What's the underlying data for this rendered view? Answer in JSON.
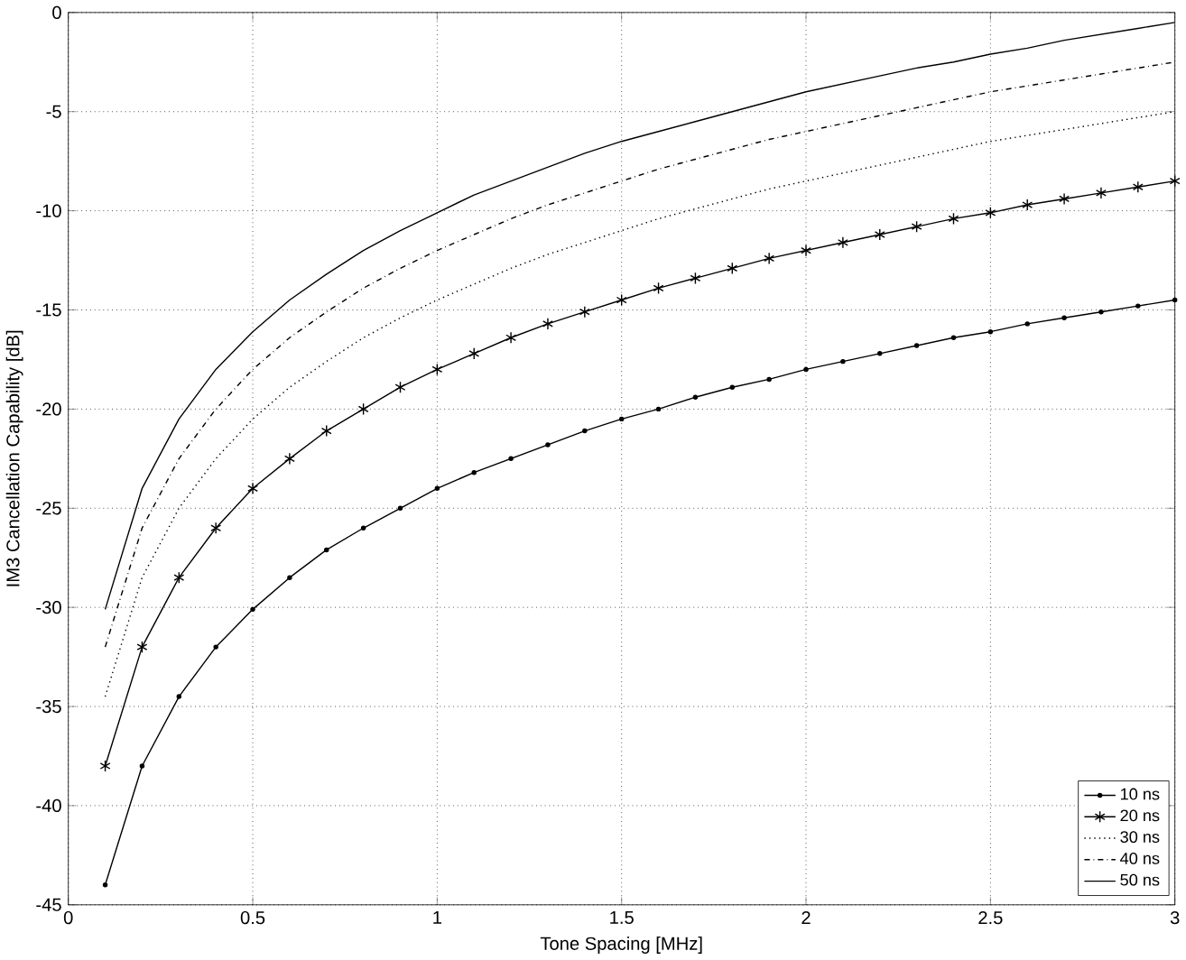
{
  "chart_data": {
    "type": "line",
    "xlabel": "Tone Spacing [MHz]",
    "ylabel": "IM3 Cancellation Capability [dB]",
    "x": [
      0.1,
      0.2,
      0.3,
      0.4,
      0.5,
      0.6,
      0.7,
      0.8,
      0.9,
      1.0,
      1.1,
      1.2,
      1.3,
      1.4,
      1.5,
      1.6,
      1.7,
      1.8,
      1.9,
      2.0,
      2.1,
      2.2,
      2.3,
      2.4,
      2.5,
      2.6,
      2.7,
      2.8,
      2.9,
      3.0
    ],
    "xlim": [
      0,
      3
    ],
    "ylim": [
      -45,
      0
    ],
    "xticks": [
      0,
      0.5,
      1,
      1.5,
      2,
      2.5,
      3
    ],
    "yticks": [
      -45,
      -40,
      -35,
      -30,
      -25,
      -20,
      -15,
      -10,
      -5,
      0
    ],
    "grid": true,
    "legend": "bottom right",
    "series": [
      {
        "name": "10 ns",
        "color": "#000000",
        "marker": "circle",
        "line_style": "solid",
        "values": [
          -44.0,
          -38.0,
          -34.5,
          -32.0,
          -30.1,
          -28.5,
          -27.1,
          -26.0,
          -25.0,
          -24.0,
          -23.2,
          -22.5,
          -21.8,
          -21.1,
          -20.5,
          -20.0,
          -19.4,
          -18.9,
          -18.5,
          -18.0,
          -17.6,
          -17.2,
          -16.8,
          -16.4,
          -16.1,
          -15.7,
          -15.4,
          -15.1,
          -14.8,
          -14.5
        ]
      },
      {
        "name": "20 ns",
        "color": "#000000",
        "marker": "cross",
        "line_style": "solid",
        "values": [
          -38.0,
          -32.0,
          -28.5,
          -26.0,
          -24.0,
          -22.5,
          -21.1,
          -20.0,
          -18.9,
          -18.0,
          -17.2,
          -16.4,
          -15.7,
          -15.1,
          -14.5,
          -13.9,
          -13.4,
          -12.9,
          -12.4,
          -12.0,
          -11.6,
          -11.2,
          -10.8,
          -10.4,
          -10.1,
          -9.7,
          -9.4,
          -9.1,
          -8.8,
          -8.5
        ]
      },
      {
        "name": "30 ns",
        "color": "#000000",
        "marker": "none",
        "line_style": "dotted",
        "values": [
          -34.5,
          -28.5,
          -25.0,
          -22.5,
          -20.5,
          -18.9,
          -17.6,
          -16.4,
          -15.4,
          -14.5,
          -13.7,
          -12.9,
          -12.2,
          -11.6,
          -11.0,
          -10.4,
          -9.9,
          -9.4,
          -8.9,
          -8.5,
          -8.1,
          -7.7,
          -7.3,
          -6.9,
          -6.5,
          -6.2,
          -5.9,
          -5.6,
          -5.3,
          -5.0
        ]
      },
      {
        "name": "40 ns",
        "color": "#000000",
        "marker": "none",
        "line_style": "dashed",
        "values": [
          -32.0,
          -26.0,
          -22.5,
          -20.0,
          -18.0,
          -16.4,
          -15.1,
          -13.9,
          -12.9,
          -12.0,
          -11.2,
          -10.4,
          -9.7,
          -9.1,
          -8.5,
          -7.9,
          -7.4,
          -6.9,
          -6.4,
          -6.0,
          -5.6,
          -5.2,
          -4.8,
          -4.4,
          -4.0,
          -3.7,
          -3.4,
          -3.1,
          -2.8,
          -2.5
        ]
      },
      {
        "name": "50 ns",
        "color": "#000000",
        "marker": "none",
        "line_style": "solid",
        "values": [
          -30.1,
          -24.0,
          -20.5,
          -18.0,
          -16.1,
          -14.5,
          -13.2,
          -12.0,
          -11.0,
          -10.1,
          -9.2,
          -8.5,
          -7.8,
          -7.1,
          -6.5,
          -6.0,
          -5.5,
          -5.0,
          -4.5,
          -4.0,
          -3.6,
          -3.2,
          -2.8,
          -2.5,
          -2.1,
          -1.8,
          -1.4,
          -1.1,
          -0.8,
          -0.5
        ]
      }
    ]
  }
}
